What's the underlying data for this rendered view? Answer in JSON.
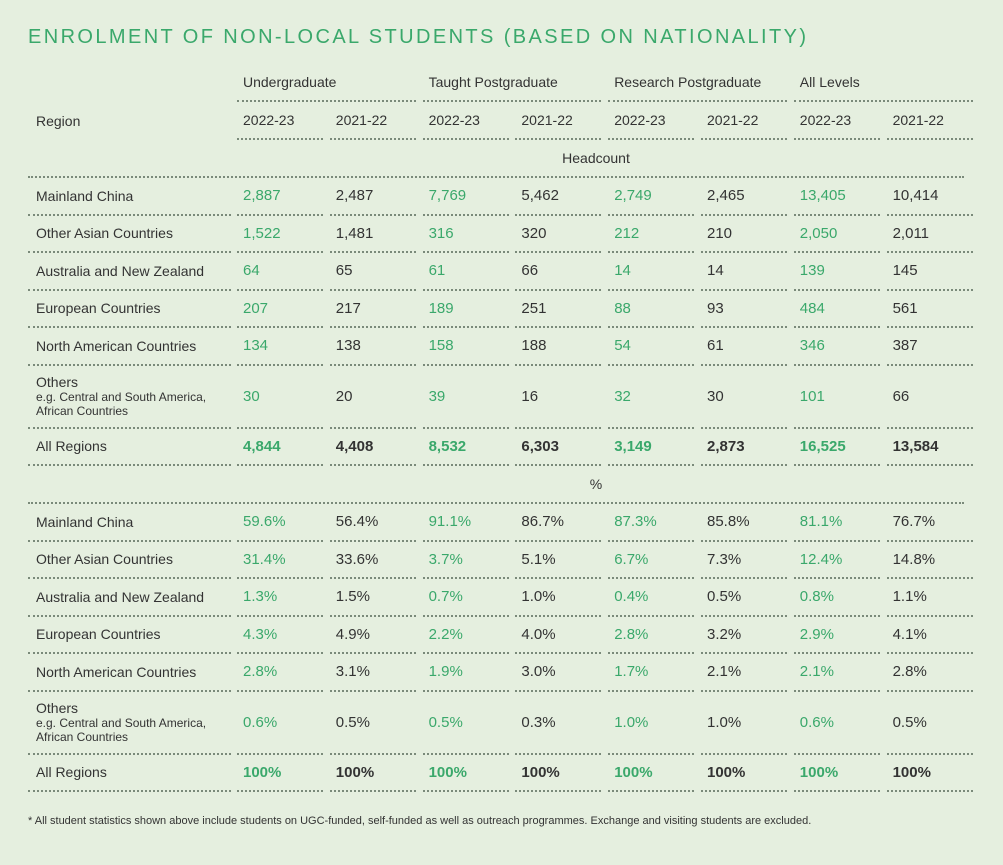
{
  "title": "ENROLMENT OF NON-LOCAL STUDENTS (BASED ON NATIONALITY)",
  "columns": {
    "region_label": "Region",
    "groups": [
      {
        "name": "Undergraduate",
        "years": [
          "2022-23",
          "2021-22"
        ]
      },
      {
        "name": "Taught Postgraduate",
        "years": [
          "2022-23",
          "2021-22"
        ]
      },
      {
        "name": "Research Postgraduate",
        "years": [
          "2022-23",
          "2021-22"
        ]
      },
      {
        "name": "All Levels",
        "years": [
          "2022-23",
          "2021-22"
        ]
      }
    ]
  },
  "sections": [
    {
      "label": "Headcount",
      "rows": [
        {
          "region": "Mainland China",
          "values": [
            "2,887",
            "2,487",
            "7,769",
            "5,462",
            "2,749",
            "2,465",
            "13,405",
            "10,414"
          ]
        },
        {
          "region": "Other Asian Countries",
          "values": [
            "1,522",
            "1,481",
            "316",
            "320",
            "212",
            "210",
            "2,050",
            "2,011"
          ]
        },
        {
          "region": "Australia and New Zealand",
          "values": [
            "64",
            "65",
            "61",
            "66",
            "14",
            "14",
            "139",
            "145"
          ]
        },
        {
          "region": "European Countries",
          "values": [
            "207",
            "217",
            "189",
            "251",
            "88",
            "93",
            "484",
            "561"
          ]
        },
        {
          "region": "North American Countries",
          "values": [
            "134",
            "138",
            "158",
            "188",
            "54",
            "61",
            "346",
            "387"
          ]
        },
        {
          "region": "Others",
          "note": [
            "e.g. Central and South America,",
            "African Countries"
          ],
          "values": [
            "30",
            "20",
            "39",
            "16",
            "32",
            "30",
            "101",
            "66"
          ]
        },
        {
          "region": "All Regions",
          "values": [
            "4,844",
            "4,408",
            "8,532",
            "6,303",
            "3,149",
            "2,873",
            "16,525",
            "13,584"
          ]
        }
      ]
    },
    {
      "label": "%",
      "rows": [
        {
          "region": "Mainland China",
          "values": [
            "59.6%",
            "56.4%",
            "91.1%",
            "86.7%",
            "87.3%",
            "85.8%",
            "81.1%",
            "76.7%"
          ]
        },
        {
          "region": "Other Asian Countries",
          "values": [
            "31.4%",
            "33.6%",
            "3.7%",
            "5.1%",
            "6.7%",
            "7.3%",
            "12.4%",
            "14.8%"
          ]
        },
        {
          "region": "Australia and New Zealand",
          "values": [
            "1.3%",
            "1.5%",
            "0.7%",
            "1.0%",
            "0.4%",
            "0.5%",
            "0.8%",
            "1.1%"
          ]
        },
        {
          "region": "European Countries",
          "values": [
            "4.3%",
            "4.9%",
            "2.2%",
            "4.0%",
            "2.8%",
            "3.2%",
            "2.9%",
            "4.1%"
          ]
        },
        {
          "region": "North American Countries",
          "values": [
            "2.8%",
            "3.1%",
            "1.9%",
            "3.0%",
            "1.7%",
            "2.1%",
            "2.1%",
            "2.8%"
          ]
        },
        {
          "region": "Others",
          "note": [
            "e.g. Central and South America,",
            "African Countries"
          ],
          "values": [
            "0.6%",
            "0.5%",
            "0.5%",
            "0.3%",
            "1.0%",
            "1.0%",
            "0.6%",
            "0.5%"
          ]
        },
        {
          "region": "All Regions",
          "values": [
            "100%",
            "100%",
            "100%",
            "100%",
            "100%",
            "100%",
            "100%",
            "100%"
          ]
        }
      ]
    }
  ],
  "footnote": "* All student statistics shown above include students on UGC-funded, self-funded as well as outreach programmes. Exchange and visiting students are excluded."
}
